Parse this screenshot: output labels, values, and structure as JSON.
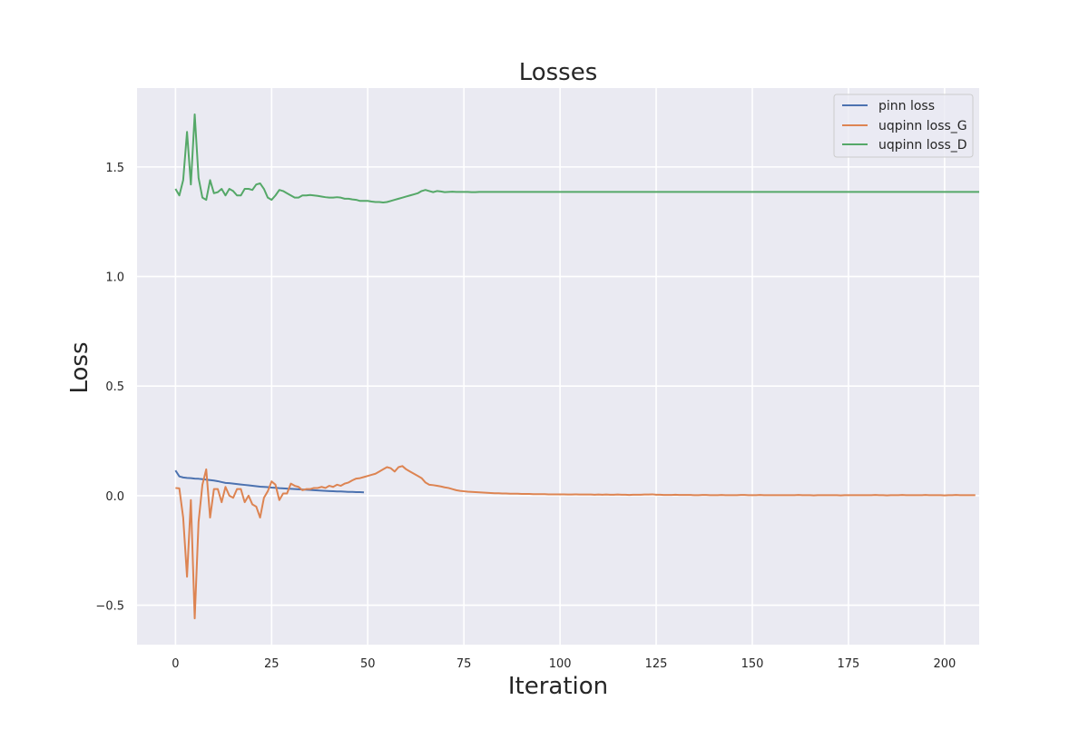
{
  "chart_data": {
    "type": "line",
    "title": "Losses",
    "xlabel": "Iteration",
    "ylabel": "Loss",
    "xlim": [
      -10,
      209
    ],
    "ylim": [
      -0.68,
      1.86
    ],
    "xticks": [
      0,
      25,
      50,
      75,
      100,
      125,
      150,
      175,
      200
    ],
    "yticks": [
      -0.5,
      0.0,
      0.5,
      1.0,
      1.5
    ],
    "xtick_labels": [
      "0",
      "25",
      "50",
      "75",
      "100",
      "125",
      "150",
      "175",
      "200"
    ],
    "ytick_labels": [
      "−0.5",
      "0.0",
      "0.5",
      "1.0",
      "1.5"
    ],
    "grid": true,
    "legend_position": "top-right",
    "background_color": "#eaeaf2",
    "series": [
      {
        "name": "pinn loss",
        "color": "#4c72b0",
        "x": [
          0,
          1,
          2,
          3,
          4,
          5,
          6,
          7,
          8,
          9,
          10,
          11,
          12,
          13,
          14,
          15,
          16,
          17,
          18,
          19,
          20,
          21,
          22,
          23,
          24,
          25,
          26,
          27,
          28,
          29,
          30,
          31,
          32,
          33,
          34,
          35,
          36,
          37,
          38,
          39,
          40,
          41,
          42,
          43,
          44,
          45,
          46,
          47,
          48,
          49
        ],
        "y": [
          0.115,
          0.088,
          0.083,
          0.081,
          0.08,
          0.078,
          0.077,
          0.075,
          0.073,
          0.071,
          0.069,
          0.066,
          0.062,
          0.058,
          0.057,
          0.055,
          0.053,
          0.051,
          0.049,
          0.047,
          0.045,
          0.043,
          0.041,
          0.04,
          0.039,
          0.037,
          0.036,
          0.034,
          0.033,
          0.032,
          0.031,
          0.03,
          0.029,
          0.028,
          0.027,
          0.026,
          0.025,
          0.024,
          0.023,
          0.022,
          0.021,
          0.02,
          0.019,
          0.019,
          0.018,
          0.017,
          0.017,
          0.016,
          0.016,
          0.015
        ]
      },
      {
        "name": "uqpinn loss_G",
        "color": "#dd8452",
        "x_start": 0,
        "y": [
          0.035,
          0.033,
          -0.1,
          -0.37,
          -0.02,
          -0.56,
          -0.12,
          0.05,
          0.12,
          -0.1,
          0.03,
          0.03,
          -0.03,
          0.04,
          0.0,
          -0.01,
          0.03,
          0.03,
          -0.03,
          0.0,
          -0.04,
          -0.05,
          -0.1,
          -0.01,
          0.02,
          0.065,
          0.05,
          -0.02,
          0.01,
          0.01,
          0.055,
          0.045,
          0.04,
          0.025,
          0.03,
          0.03,
          0.035,
          0.035,
          0.04,
          0.035,
          0.045,
          0.04,
          0.05,
          0.045,
          0.055,
          0.06,
          0.07,
          0.078,
          0.08,
          0.085,
          0.09,
          0.095,
          0.1,
          0.11,
          0.12,
          0.13,
          0.125,
          0.11,
          0.13,
          0.135,
          0.12,
          0.11,
          0.1,
          0.09,
          0.08,
          0.06,
          0.05,
          0.048,
          0.045,
          0.042,
          0.038,
          0.035,
          0.03,
          0.025,
          0.022,
          0.02,
          0.018,
          0.017,
          0.016,
          0.015,
          0.014,
          0.013,
          0.012,
          0.011,
          0.011,
          0.01,
          0.01,
          0.009,
          0.009,
          0.009,
          0.008,
          0.008,
          0.008,
          0.007,
          0.007,
          0.007,
          0.007,
          0.006,
          0.006,
          0.006,
          0.006,
          0.006,
          0.005,
          0.005,
          0.006,
          0.005,
          0.005,
          0.005,
          0.005,
          0.004,
          0.005,
          0.004,
          0.005,
          0.004,
          0.004,
          0.005,
          0.004,
          0.004,
          0.003,
          0.004,
          0.004,
          0.004,
          0.005,
          0.005,
          0.006,
          0.004,
          0.004,
          0.003,
          0.003,
          0.003,
          0.004,
          0.003,
          0.003,
          0.003,
          0.003,
          0.002,
          0.002,
          0.003,
          0.003,
          0.002,
          0.002,
          0.002,
          0.003,
          0.002,
          0.002,
          0.002,
          0.002,
          0.003,
          0.003,
          0.002,
          0.002,
          0.002,
          0.003,
          0.002,
          0.002,
          0.002,
          0.002,
          0.002,
          0.002,
          0.002,
          0.002,
          0.002,
          0.003,
          0.002,
          0.002,
          0.002,
          0.001,
          0.002,
          0.002,
          0.002,
          0.002,
          0.002,
          0.002,
          0.001,
          0.002,
          0.002,
          0.002,
          0.002,
          0.002,
          0.002,
          0.002,
          0.002,
          0.003,
          0.002,
          0.002,
          0.001,
          0.002,
          0.002,
          0.002,
          0.003,
          0.002,
          0.002,
          0.002,
          0.002,
          0.002,
          0.003,
          0.002,
          0.002,
          0.002,
          0.002,
          0.001,
          0.002,
          0.002,
          0.003,
          0.002,
          0.002,
          0.002,
          0.002,
          0.002
        ]
      },
      {
        "name": "uqpinn loss_D",
        "color": "#55a868",
        "x_start": 0,
        "y": [
          1.4,
          1.37,
          1.44,
          1.66,
          1.42,
          1.74,
          1.45,
          1.36,
          1.35,
          1.44,
          1.38,
          1.385,
          1.4,
          1.37,
          1.4,
          1.39,
          1.37,
          1.37,
          1.4,
          1.4,
          1.395,
          1.42,
          1.425,
          1.4,
          1.36,
          1.35,
          1.37,
          1.395,
          1.39,
          1.38,
          1.37,
          1.36,
          1.36,
          1.37,
          1.37,
          1.372,
          1.37,
          1.368,
          1.365,
          1.362,
          1.36,
          1.36,
          1.362,
          1.36,
          1.355,
          1.355,
          1.352,
          1.35,
          1.345,
          1.345,
          1.345,
          1.342,
          1.34,
          1.34,
          1.338,
          1.34,
          1.345,
          1.35,
          1.355,
          1.36,
          1.365,
          1.37,
          1.375,
          1.38,
          1.39,
          1.395,
          1.39,
          1.385,
          1.39,
          1.388,
          1.385,
          1.386,
          1.387,
          1.386,
          1.386,
          1.386,
          1.386,
          1.385,
          1.385,
          1.386,
          1.386,
          1.386,
          1.386,
          1.386,
          1.386,
          1.386,
          1.386,
          1.386,
          1.386,
          1.386,
          1.386,
          1.386,
          1.386,
          1.386,
          1.386,
          1.386,
          1.386,
          1.386,
          1.386,
          1.386,
          1.386,
          1.386,
          1.386,
          1.386,
          1.386,
          1.386,
          1.386,
          1.386,
          1.386,
          1.386,
          1.386,
          1.386,
          1.386,
          1.386,
          1.386,
          1.386,
          1.386,
          1.386,
          1.386,
          1.386,
          1.386,
          1.386,
          1.386,
          1.386,
          1.386,
          1.386,
          1.386,
          1.386,
          1.386,
          1.386,
          1.386,
          1.386,
          1.386,
          1.386,
          1.386,
          1.386,
          1.386,
          1.386,
          1.386,
          1.386,
          1.386,
          1.386,
          1.386,
          1.386,
          1.386,
          1.386,
          1.386,
          1.386,
          1.386,
          1.386,
          1.386,
          1.386,
          1.386,
          1.386,
          1.386,
          1.386,
          1.386,
          1.386,
          1.386,
          1.386,
          1.386,
          1.386,
          1.386,
          1.386,
          1.386,
          1.386,
          1.386,
          1.386,
          1.386,
          1.386,
          1.386,
          1.386,
          1.386,
          1.386,
          1.386,
          1.386,
          1.386,
          1.386,
          1.386,
          1.386,
          1.386,
          1.386,
          1.386,
          1.386,
          1.386,
          1.386,
          1.386,
          1.386,
          1.386,
          1.386,
          1.386,
          1.386,
          1.386,
          1.386,
          1.386,
          1.386,
          1.386,
          1.386,
          1.386,
          1.386,
          1.386,
          1.386,
          1.386,
          1.386,
          1.386,
          1.386,
          1.386,
          1.386,
          1.386,
          1.386
        ]
      }
    ]
  }
}
